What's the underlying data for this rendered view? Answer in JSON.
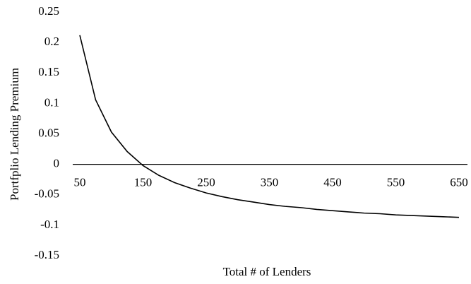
{
  "chart_data": {
    "type": "line",
    "x_label": "Total # of Lenders",
    "y_label": "Portfplio Lending Premium",
    "x": [
      50,
      75,
      100,
      125,
      150,
      175,
      200,
      225,
      250,
      275,
      300,
      325,
      350,
      375,
      400,
      425,
      450,
      475,
      500,
      525,
      550,
      575,
      600,
      625,
      650
    ],
    "series": [
      {
        "color": "#000000",
        "values": [
          0.212,
          0.106,
          0.053,
          0.021,
          -0.002,
          -0.018,
          -0.03,
          -0.039,
          -0.047,
          -0.053,
          -0.058,
          -0.062,
          -0.066,
          -0.069,
          -0.071,
          -0.074,
          -0.076,
          -0.078,
          -0.08,
          -0.081,
          -0.083,
          -0.084,
          -0.085,
          -0.086,
          -0.087
        ]
      }
    ],
    "xlim": [
      50,
      650
    ],
    "xticks": [
      50,
      150,
      250,
      350,
      450,
      550,
      650
    ],
    "ylim": [
      -0.15,
      0.25
    ],
    "yticks": [
      -0.15,
      -0.1,
      -0.05,
      0,
      0.05,
      0.1,
      0.15,
      0.2,
      0.25
    ],
    "grid": false
  }
}
